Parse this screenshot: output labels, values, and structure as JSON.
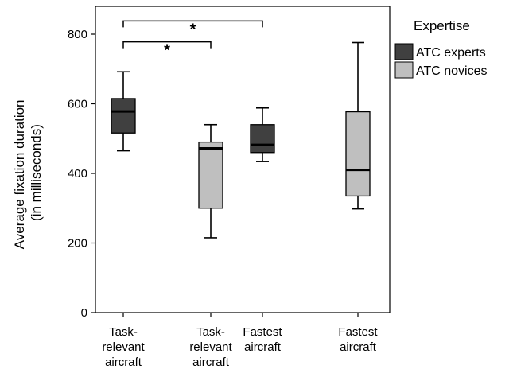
{
  "chart_data": {
    "type": "boxplot",
    "ylabel_lines": [
      "Average fixation duration",
      "(in milliseconds)"
    ],
    "ylim": [
      0,
      880
    ],
    "yticks": [
      0,
      200,
      400,
      600,
      800
    ],
    "categories": [
      [
        "Task-",
        "relevant",
        "aircraft"
      ],
      [
        "Task-",
        "relevant",
        "aircraft"
      ],
      [
        "Fastest",
        "aircraft"
      ],
      [
        "Fastest",
        "aircraft"
      ]
    ],
    "legend": {
      "title": "Expertise",
      "placement": "right",
      "entries": [
        {
          "label": "ATC experts",
          "color": "#404040"
        },
        {
          "label": "ATC novices",
          "color": "#bfbfbf"
        }
      ]
    },
    "boxes": [
      {
        "series": "ATC experts",
        "min": 465,
        "q1": 516,
        "median": 578,
        "q3": 615,
        "max": 692
      },
      {
        "series": "ATC novices",
        "min": 215,
        "q1": 300,
        "median": 472,
        "q3": 490,
        "max": 540
      },
      {
        "series": "ATC experts",
        "min": 434,
        "q1": 460,
        "median": 482,
        "q3": 540,
        "max": 588
      },
      {
        "series": "ATC novices",
        "min": 298,
        "q1": 335,
        "median": 410,
        "q3": 577,
        "max": 776
      }
    ],
    "significance": [
      {
        "from": 0,
        "to": 2,
        "level": 838,
        "label": "*"
      },
      {
        "from": 0,
        "to": 1,
        "level": 778,
        "label": "*"
      }
    ]
  }
}
